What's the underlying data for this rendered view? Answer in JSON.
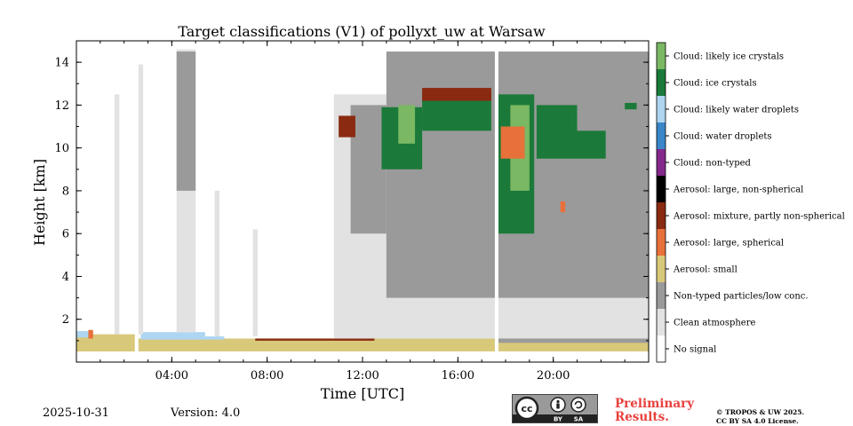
{
  "chart_data": {
    "type": "heatmap",
    "title": "Target classifications (V1) of pollyxt_uw at Warsaw",
    "xlabel": "Time [UTC]",
    "ylabel": "Height [km]",
    "xlim_hours": [
      0,
      24
    ],
    "ylim_km": [
      0,
      15
    ],
    "x_ticks": [
      {
        "hour": 4,
        "label": "04:00"
      },
      {
        "hour": 8,
        "label": "08:00"
      },
      {
        "hour": 12,
        "label": "12:00"
      },
      {
        "hour": 16,
        "label": "16:00"
      },
      {
        "hour": 20,
        "label": "20:00"
      }
    ],
    "y_ticks": [
      {
        "km": 2,
        "label": "2"
      },
      {
        "km": 4,
        "label": "4"
      },
      {
        "km": 6,
        "label": "6"
      },
      {
        "km": 8,
        "label": "8"
      },
      {
        "km": 10,
        "label": "10"
      },
      {
        "km": 12,
        "label": "12"
      },
      {
        "km": 14,
        "label": "14"
      }
    ],
    "classes": [
      {
        "label": "Cloud: likely ice crystals",
        "color": "#7bb863"
      },
      {
        "label": "Cloud: ice crystals",
        "color": "#1b7a39"
      },
      {
        "label": "Cloud: likely water droplets",
        "color": "#aed5f1"
      },
      {
        "label": "Cloud: water droplets",
        "color": "#3a86c8"
      },
      {
        "label": "Cloud: non-typed",
        "color": "#85288c"
      },
      {
        "label": "Aerosol: large, non-spherical",
        "color": "#000000"
      },
      {
        "label": "Aerosol: mixture, partly non-spherical",
        "color": "#8a2a10"
      },
      {
        "label": "Aerosol: large, spherical",
        "color": "#e8703a"
      },
      {
        "label": "Aerosol: small",
        "color": "#d8c87a"
      },
      {
        "label": "Non-typed particles/low conc.",
        "color": "#9a9a9a"
      },
      {
        "label": "Clean atmosphere",
        "color": "#e2e2e2"
      },
      {
        "label": "No signal",
        "color": "#ffffff"
      }
    ],
    "regions": [
      {
        "class": "Aerosol: small",
        "t0": 0.0,
        "t1": 24.0,
        "h0": 0.5,
        "h1": 1.1
      },
      {
        "class": "Aerosol: small",
        "t0": 0.0,
        "t1": 2.6,
        "h0": 0.5,
        "h1": 1.3
      },
      {
        "class": "Cloud: likely water droplets",
        "t0": 0.0,
        "t1": 0.6,
        "h0": 1.15,
        "h1": 1.45
      },
      {
        "class": "Cloud: likely water droplets",
        "t0": 2.7,
        "t1": 5.4,
        "h0": 1.05,
        "h1": 1.4
      },
      {
        "class": "Cloud: likely water droplets",
        "t0": 5.4,
        "t1": 6.2,
        "h0": 1.05,
        "h1": 1.2
      },
      {
        "class": "Aerosol: large, spherical",
        "t0": 0.5,
        "t1": 0.7,
        "h0": 1.1,
        "h1": 1.5
      },
      {
        "class": "Aerosol: mixture, partly non-spherical",
        "t0": 7.5,
        "t1": 12.5,
        "h0": 1.0,
        "h1": 1.1
      },
      {
        "class": "Non-typed particles/low conc.",
        "t0": 17.6,
        "t1": 24.0,
        "h0": 0.9,
        "h1": 1.6
      },
      {
        "class": "Clean atmosphere",
        "t0": 4.2,
        "t1": 5.0,
        "h0": 1.4,
        "h1": 14.6
      },
      {
        "class": "Clean atmosphere",
        "t0": 10.8,
        "t1": 24.0,
        "h0": 1.1,
        "h1": 12.5
      },
      {
        "class": "Clean atmosphere",
        "t0": 5.8,
        "t1": 6.0,
        "h0": 1.2,
        "h1": 8.0
      },
      {
        "class": "Clean atmosphere",
        "t0": 1.6,
        "t1": 1.8,
        "h0": 1.3,
        "h1": 12.5
      },
      {
        "class": "Clean atmosphere",
        "t0": 2.6,
        "t1": 2.8,
        "h0": 1.3,
        "h1": 13.9
      },
      {
        "class": "Clean atmosphere",
        "t0": 7.4,
        "t1": 7.6,
        "h0": 1.2,
        "h1": 6.2
      },
      {
        "class": "Non-typed particles/low conc.",
        "t0": 4.2,
        "t1": 5.0,
        "h0": 8.0,
        "h1": 14.5
      },
      {
        "class": "Non-typed particles/low conc.",
        "t0": 13.0,
        "t1": 24.0,
        "h0": 3.0,
        "h1": 14.5
      },
      {
        "class": "Non-typed particles/low conc.",
        "t0": 11.5,
        "t1": 13.0,
        "h0": 6.0,
        "h1": 12.0
      },
      {
        "class": "Cloud: ice crystals",
        "t0": 12.8,
        "t1": 14.5,
        "h0": 9.0,
        "h1": 11.9
      },
      {
        "class": "Cloud: likely ice crystals",
        "t0": 13.5,
        "t1": 14.2,
        "h0": 10.2,
        "h1": 12.0
      },
      {
        "class": "Cloud: ice crystals",
        "t0": 14.5,
        "t1": 17.4,
        "h0": 10.8,
        "h1": 12.6
      },
      {
        "class": "Aerosol: mixture, partly non-spherical",
        "t0": 14.5,
        "t1": 17.4,
        "h0": 12.2,
        "h1": 12.8
      },
      {
        "class": "Cloud: ice crystals",
        "t0": 17.7,
        "t1": 19.2,
        "h0": 6.0,
        "h1": 12.5
      },
      {
        "class": "Cloud: likely ice crystals",
        "t0": 18.2,
        "t1": 19.0,
        "h0": 8.0,
        "h1": 12.0
      },
      {
        "class": "Aerosol: large, spherical",
        "t0": 17.8,
        "t1": 18.8,
        "h0": 9.5,
        "h1": 11.0
      },
      {
        "class": "Cloud: ice crystals",
        "t0": 19.3,
        "t1": 21.0,
        "h0": 9.5,
        "h1": 12.0
      },
      {
        "class": "Cloud: ice crystals",
        "t0": 21.0,
        "t1": 22.2,
        "h0": 9.5,
        "h1": 10.8
      },
      {
        "class": "Aerosol: mixture, partly non-spherical",
        "t0": 11.0,
        "t1": 11.7,
        "h0": 10.5,
        "h1": 11.5
      },
      {
        "class": "Aerosol: large, spherical",
        "t0": 20.3,
        "t1": 20.5,
        "h0": 7.0,
        "h1": 7.5
      },
      {
        "class": "Cloud: ice crystals",
        "t0": 23.0,
        "t1": 23.5,
        "h0": 11.8,
        "h1": 12.1
      }
    ],
    "gaps": [
      {
        "t0": 2.45,
        "t1": 2.6
      },
      {
        "t0": 17.55,
        "t1": 17.7
      }
    ]
  },
  "footer": {
    "date": "2025-10-31",
    "version": "Version: 4.0",
    "preliminary_line1": "Preliminary",
    "preliminary_line2": "Results.",
    "copyright_line1": "© TROPOS & UW 2025.",
    "copyright_line2": "CC BY SA 4.0 License.",
    "license_badge": {
      "cc": "cc",
      "by": "BY",
      "sa": "SA"
    }
  }
}
